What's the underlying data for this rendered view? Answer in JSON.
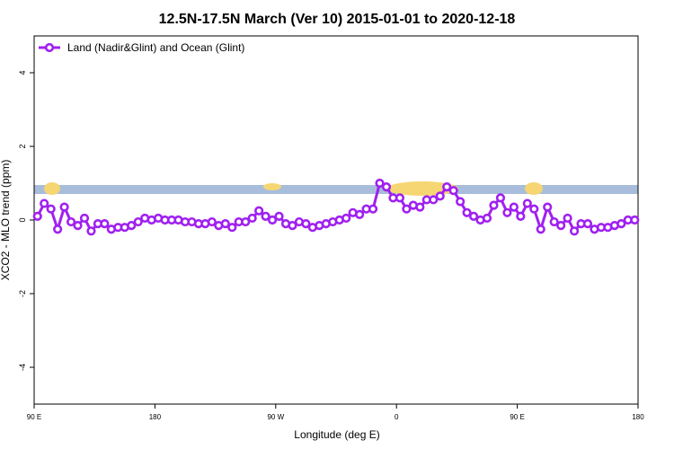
{
  "chart_data": {
    "type": "line",
    "title": "12.5N-17.5N March (Ver 10)   2015-01-01 to 2020-12-18",
    "x_label": "Longitude (deg E)",
    "y_label": "XCO2 - MLO trend (ppm)",
    "xlim": [
      90,
      540
    ],
    "ylim": [
      -5,
      5
    ],
    "xticks": [
      {
        "value": 90,
        "label": "90 E"
      },
      180,
      {
        "value": 270,
        "label": "90 W"
      },
      {
        "value": 360,
        "label": "0"
      },
      {
        "value": 450,
        "label": "90 E"
      },
      {
        "value": 540,
        "label": "180"
      }
    ],
    "yticks": [
      -4,
      -2,
      0,
      2,
      4
    ],
    "legend": "top-left",
    "series": [
      {
        "name": "Land (Nadir&Glint) and Ocean (Glint)",
        "color": "#a020f0",
        "x": [
          92.5,
          97.5,
          102.5,
          107.5,
          112.5,
          117.5,
          122.5,
          127.5,
          132.5,
          137.5,
          142.5,
          147.5,
          152.5,
          157.5,
          162.5,
          167.5,
          172.5,
          177.5,
          182.5,
          187.5,
          192.5,
          197.5,
          202.5,
          207.5,
          212.5,
          217.5,
          222.5,
          227.5,
          232.5,
          237.5,
          242.5,
          247.5,
          252.5,
          257.5,
          262.5,
          267.5,
          272.5,
          277.5,
          282.5,
          287.5,
          292.5,
          297.5,
          302.5,
          307.5,
          312.5,
          317.5,
          322.5,
          327.5,
          332.5,
          337.5,
          342.5,
          347.5,
          352.5,
          357.5,
          362.5,
          367.5,
          372.5,
          377.5,
          382.5,
          387.5,
          392.5,
          397.5,
          402.5,
          407.5,
          412.5,
          417.5,
          422.5,
          427.5,
          432.5,
          437.5,
          442.5,
          447.5,
          452.5,
          457.5,
          462.5,
          467.5,
          472.5,
          477.5,
          482.5,
          487.5,
          492.5,
          497.5,
          502.5,
          507.5,
          512.5,
          517.5,
          522.5,
          527.5,
          532.5,
          537.5
        ],
        "values": [
          0.1,
          0.45,
          0.3,
          -0.25,
          0.35,
          -0.05,
          -0.15,
          0.05,
          -0.3,
          -0.1,
          -0.1,
          -0.25,
          -0.2,
          -0.2,
          -0.15,
          -0.05,
          0.05,
          0,
          0.05,
          0,
          0,
          0,
          -0.05,
          -0.05,
          -0.1,
          -0.1,
          -0.05,
          -0.15,
          -0.1,
          -0.2,
          -0.05,
          -0.05,
          0.05,
          0.25,
          0.1,
          0,
          0.1,
          -0.1,
          -0.15,
          -0.05,
          -0.1,
          -0.2,
          -0.15,
          -0.1,
          -0.05,
          0,
          0.05,
          0.2,
          0.15,
          0.3,
          0.3,
          1.0,
          0.9,
          0.6,
          0.6,
          0.3,
          0.4,
          0.35,
          0.55,
          0.55,
          0.65,
          0.9,
          0.8,
          0.5,
          0.2,
          0.1,
          0,
          0.05,
          0.4,
          0.6,
          0.2,
          0.35,
          0.1,
          0.45,
          0.3,
          -0.25,
          0.35,
          -0.05,
          -0.15,
          0.05,
          -0.3,
          -0.1,
          -0.1,
          -0.25,
          -0.2,
          -0.2,
          -0.15,
          -0.1,
          0,
          0
        ]
      }
    ]
  }
}
